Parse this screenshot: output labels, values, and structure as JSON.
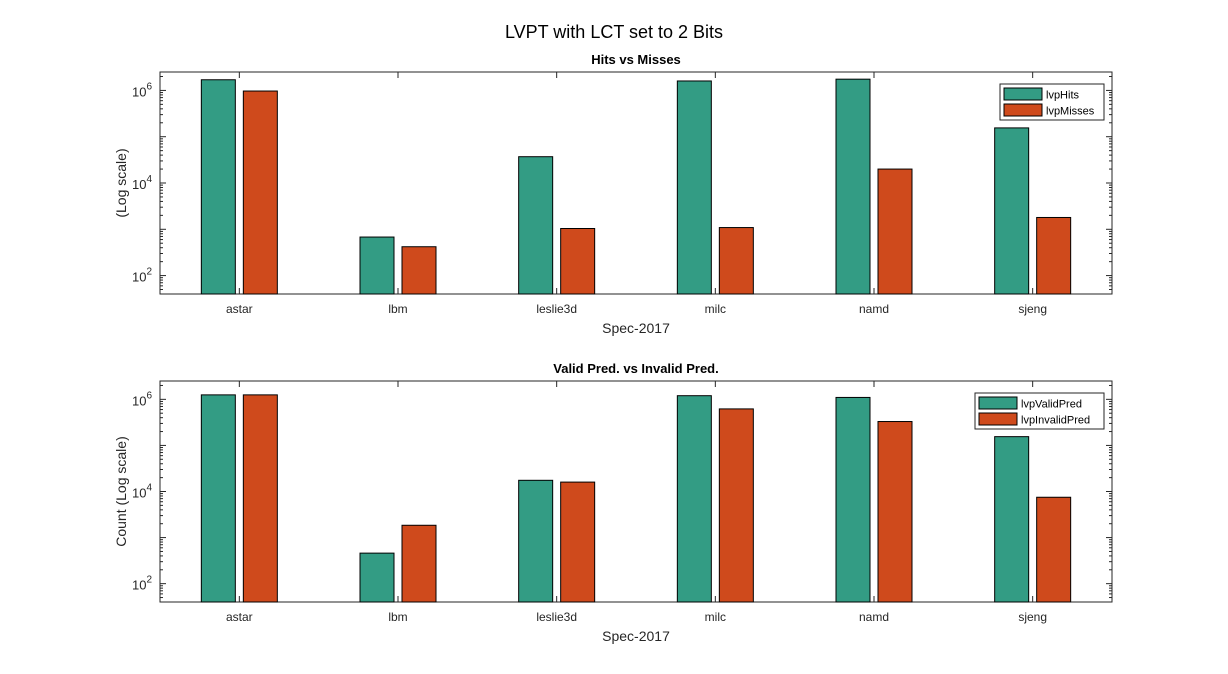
{
  "figure_title": "LVPT with LCT set to 2 Bits",
  "colors": {
    "hits": "#339c84",
    "misses": "#cf4a1c",
    "axis": "#262626",
    "background": "#ffffff"
  },
  "chart_data": [
    {
      "type": "bar",
      "title": "Hits vs Misses",
      "xlabel": "Spec-2017",
      "ylabel": "(Log scale)",
      "yscale": "log",
      "ylim": [
        40,
        2500000
      ],
      "yticks": [
        100,
        10000,
        1000000
      ],
      "ytick_labels": [
        {
          "base": "10",
          "exp": "2"
        },
        {
          "base": "10",
          "exp": "4"
        },
        {
          "base": "10",
          "exp": "6"
        }
      ],
      "grid": false,
      "legend_position": "top-right",
      "categories": [
        "astar",
        "lbm",
        "leslie3d",
        "milc",
        "namd",
        "sjeng"
      ],
      "series": [
        {
          "name": "lvpHits",
          "color": "#339c84",
          "values": [
            1700000,
            680,
            37000,
            1600000,
            1750000,
            155000
          ]
        },
        {
          "name": "lvpMisses",
          "color": "#cf4a1c",
          "values": [
            970000,
            420,
            1040,
            1090,
            20000,
            1800
          ]
        }
      ]
    },
    {
      "type": "bar",
      "title": "Valid Pred. vs Invalid Pred.",
      "xlabel": "Spec-2017",
      "ylabel": "Count (Log scale)",
      "yscale": "log",
      "ylim": [
        40,
        2500000
      ],
      "yticks": [
        100,
        10000,
        1000000
      ],
      "ytick_labels": [
        {
          "base": "10",
          "exp": "2"
        },
        {
          "base": "10",
          "exp": "4"
        },
        {
          "base": "10",
          "exp": "6"
        }
      ],
      "grid": false,
      "legend_position": "top-right",
      "categories": [
        "astar",
        "lbm",
        "leslie3d",
        "milc",
        "namd",
        "sjeng"
      ],
      "series": [
        {
          "name": "lvpValidPred",
          "color": "#339c84",
          "values": [
            1250000,
            460,
            17500,
            1200000,
            1100000,
            155000
          ]
        },
        {
          "name": "lvpInvalidPred",
          "color": "#cf4a1c",
          "values": [
            1250000,
            1850,
            16000,
            620000,
            330000,
            7500
          ]
        }
      ]
    }
  ]
}
